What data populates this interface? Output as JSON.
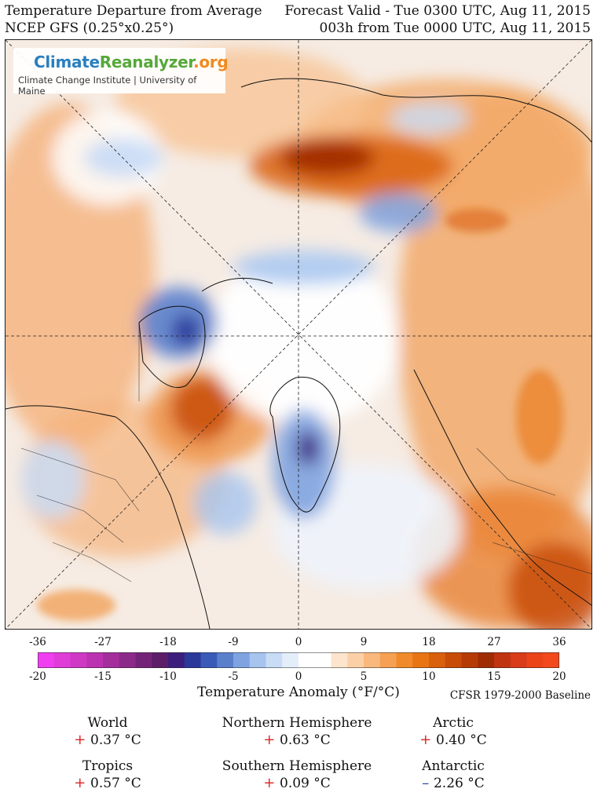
{
  "header": {
    "title_left_1": "Temperature Departure from Average",
    "title_left_2": "NCEP GFS (0.25°x0.25°)",
    "title_right_1": "Forecast Valid - Tue 0300 UTC, Aug 11, 2015",
    "title_right_2": "003h from Tue 0000 UTC, Aug 11, 2015"
  },
  "logo": {
    "part1": "Climate",
    "part2": "Reanalyzer",
    "part3": ".org",
    "subtitle": "Climate Change Institute | University of Maine",
    "colors": {
      "climate": "#2a7fbf",
      "reanalyzer": "#56a83a",
      "org": "#f08a1e"
    }
  },
  "map": {
    "projection": "north-polar-stereographic",
    "grid_lines": "dashed",
    "features": [
      "cold-anomaly-greenland",
      "cold-anomaly-hudson-bay",
      "warm-anomaly-siberia",
      "warm-anomaly-central-asia"
    ]
  },
  "colorbar": {
    "fahrenheit_ticks": [
      "-36",
      "-27",
      "-18",
      "-9",
      "0",
      "9",
      "18",
      "27",
      "36"
    ],
    "celsius_ticks": [
      "-20",
      "-15",
      "-10",
      "-5",
      "0",
      "5",
      "10",
      "15",
      "20"
    ],
    "label": "Temperature Anomaly (°F/°C)",
    "baseline": "CFSR 1979-2000 Baseline",
    "colors": [
      "#f03ff0",
      "#e03cd8",
      "#cf38c4",
      "#bb33b0",
      "#a42e9c",
      "#8c2a8a",
      "#742478",
      "#5c1e68",
      "#3c1f7c",
      "#2b3a99",
      "#3a5bb8",
      "#5a80cc",
      "#7fa3e0",
      "#a6c4ee",
      "#c8dcf6",
      "#e4eefb",
      "#ffffff",
      "#ffffff",
      "#fde4cc",
      "#fcd0a6",
      "#f9b87c",
      "#f5a052",
      "#f08a2c",
      "#e87414",
      "#d9600c",
      "#c84c08",
      "#b53a06",
      "#a02c04",
      "#c03410",
      "#d83c18",
      "#ea4418",
      "#f24a1c"
    ]
  },
  "stats": [
    {
      "region": "World",
      "sign": "+",
      "value": "0.37 °C"
    },
    {
      "region": "Northern Hemisphere",
      "sign": "+",
      "value": "0.63 °C"
    },
    {
      "region": "Arctic",
      "sign": "+",
      "value": "0.40 °C"
    },
    {
      "region": "Tropics",
      "sign": "+",
      "value": "0.57 °C"
    },
    {
      "region": "Southern Hemisphere",
      "sign": "+",
      "value": "0.09 °C"
    },
    {
      "region": "Antarctic",
      "sign": "–",
      "value": "2.26 °C"
    }
  ]
}
